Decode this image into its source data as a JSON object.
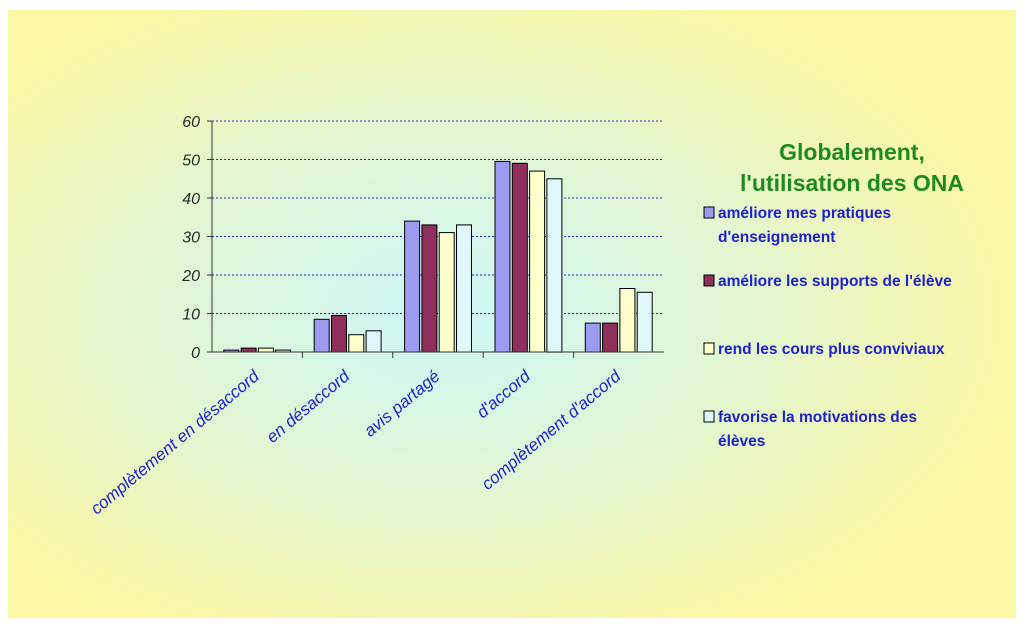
{
  "colors": {
    "frame_bg": "#ffffff",
    "bg_yellow": "#fbf7a4",
    "bg_cyan": "#ccf6f7",
    "grid": "#2a2ad0",
    "axis": "#333333",
    "legend_title": "#1f8a1f",
    "legend_text": "#1f22cc"
  },
  "chart_data": {
    "type": "bar",
    "title": "Globalement, l'utilisation des ONA",
    "title_lines": [
      "Globalement,",
      "l'utilisation des ONA"
    ],
    "categories": [
      "complètement en désaccord",
      "en désaccord",
      "avis partagé",
      "d'accord",
      "complètement d'accord"
    ],
    "series": [
      {
        "name": "améliore mes pratiques d'enseignement",
        "legend_lines": [
          "améliore mes pratiques",
          "d'enseignement"
        ],
        "color": "#9b9bf0",
        "values": [
          0.5,
          8.5,
          34,
          49.5,
          7.5
        ]
      },
      {
        "name": "améliore les supports de l'élève",
        "legend_lines": [
          "améliore les supports de l'élève"
        ],
        "color": "#8e2f5c",
        "values": [
          1,
          9.5,
          33,
          49,
          7.5
        ]
      },
      {
        "name": "rend les cours plus conviviaux",
        "legend_lines": [
          "rend les cours plus conviviaux"
        ],
        "color": "#ffffcc",
        "values": [
          1,
          4.5,
          31,
          47,
          16.5
        ]
      },
      {
        "name": "favorise la motivations des élèves",
        "legend_lines": [
          "favorise la motivations des",
          "élèves"
        ],
        "color": "#dff7fb",
        "values": [
          0.5,
          5.5,
          33,
          45,
          15.5
        ]
      }
    ],
    "yticks": [
      "0",
      "10",
      "20",
      "30",
      "40",
      "50",
      "60"
    ],
    "ylim": [
      0,
      60
    ],
    "grid": true,
    "legend_position": "right"
  }
}
